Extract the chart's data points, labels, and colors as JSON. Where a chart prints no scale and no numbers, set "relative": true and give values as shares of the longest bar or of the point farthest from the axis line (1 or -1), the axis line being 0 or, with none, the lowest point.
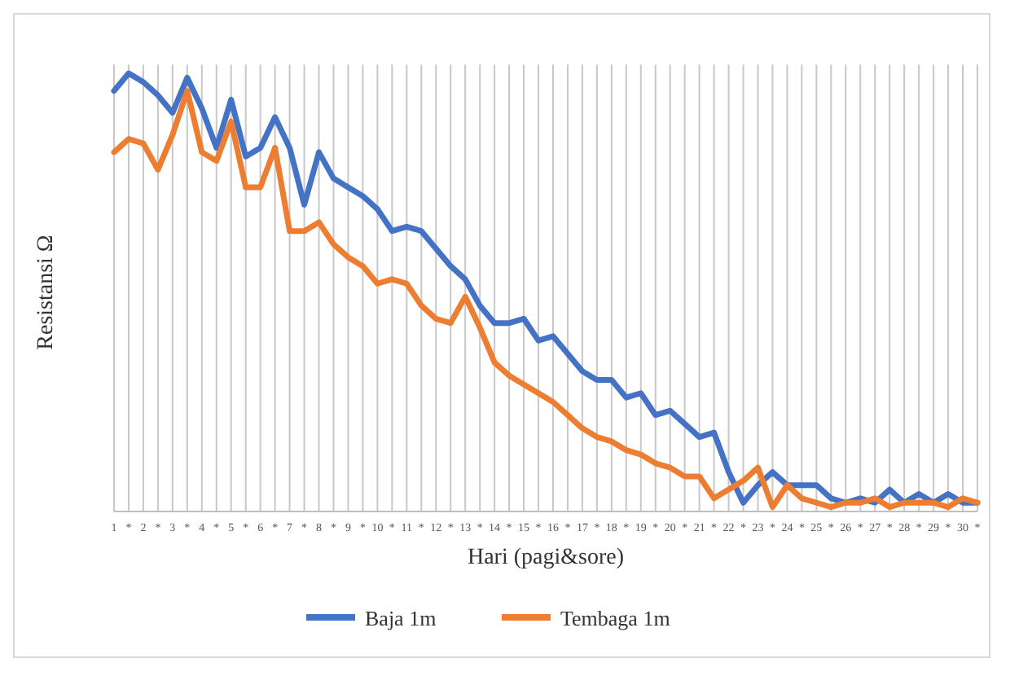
{
  "chart_data": {
    "type": "line",
    "relative": true,
    "xlabel": "Hari (pagi&sore)",
    "ylabel": "Resistansi Ω",
    "grid": "x",
    "legend": "bottom",
    "line_style": "solid",
    "marker": "none",
    "categories": [
      "1",
      "*",
      "2",
      "*",
      "3",
      "*",
      "4",
      "*",
      "5",
      "*",
      "6",
      "*",
      "7",
      "*",
      "8",
      "*",
      "9",
      "*",
      "10",
      "*",
      "11",
      "*",
      "12",
      "*",
      "13",
      "*",
      "14",
      "*",
      "15",
      "*",
      "16",
      "*",
      "17",
      "*",
      "18",
      "*",
      "19",
      "*",
      "20",
      "*",
      "21",
      "*",
      "22",
      "*",
      "23",
      "*",
      "24",
      "*",
      "25",
      "*",
      "26",
      "*",
      "27",
      "*",
      "28",
      "*",
      "29",
      "*",
      "30",
      "*"
    ],
    "series": [
      {
        "name": "Baja 1m",
        "color": "#4472c4",
        "values": [
          0.96,
          1,
          0.98,
          0.95,
          0.91,
          0.99,
          0.92,
          0.83,
          0.94,
          0.81,
          0.83,
          0.9,
          0.83,
          0.7,
          0.82,
          0.76,
          0.74,
          0.72,
          0.69,
          0.64,
          0.65,
          0.64,
          0.6,
          0.56,
          0.53,
          0.47,
          0.43,
          0.43,
          0.44,
          0.39,
          0.4,
          0.36,
          0.32,
          0.3,
          0.3,
          0.26,
          0.27,
          0.22,
          0.23,
          0.2,
          0.17,
          0.18,
          0.09,
          0.02,
          0.06,
          0.09,
          0.06,
          0.06,
          0.06,
          0.03,
          0.02,
          0.03,
          0.02,
          0.05,
          0.02,
          0.04,
          0.02,
          0.04,
          0.02,
          0.02
        ]
      },
      {
        "name": "Tembaga 1m",
        "color": "#ed7d31",
        "values": [
          0.82,
          0.85,
          0.84,
          0.78,
          0.86,
          0.96,
          0.82,
          0.8,
          0.89,
          0.74,
          0.74,
          0.83,
          0.64,
          0.64,
          0.66,
          0.61,
          0.58,
          0.56,
          0.52,
          0.53,
          0.52,
          0.47,
          0.44,
          0.43,
          0.49,
          0.42,
          0.34,
          0.31,
          0.29,
          0.27,
          0.25,
          0.22,
          0.19,
          0.17,
          0.16,
          0.14,
          0.13,
          0.11,
          0.1,
          0.08,
          0.08,
          0.03,
          0.05,
          0.07,
          0.1,
          0.01,
          0.06,
          0.03,
          0.02,
          0.01,
          0.02,
          0.02,
          0.03,
          0.01,
          0.02,
          0.02,
          0.02,
          0.01,
          0.03,
          0.02
        ]
      }
    ]
  }
}
